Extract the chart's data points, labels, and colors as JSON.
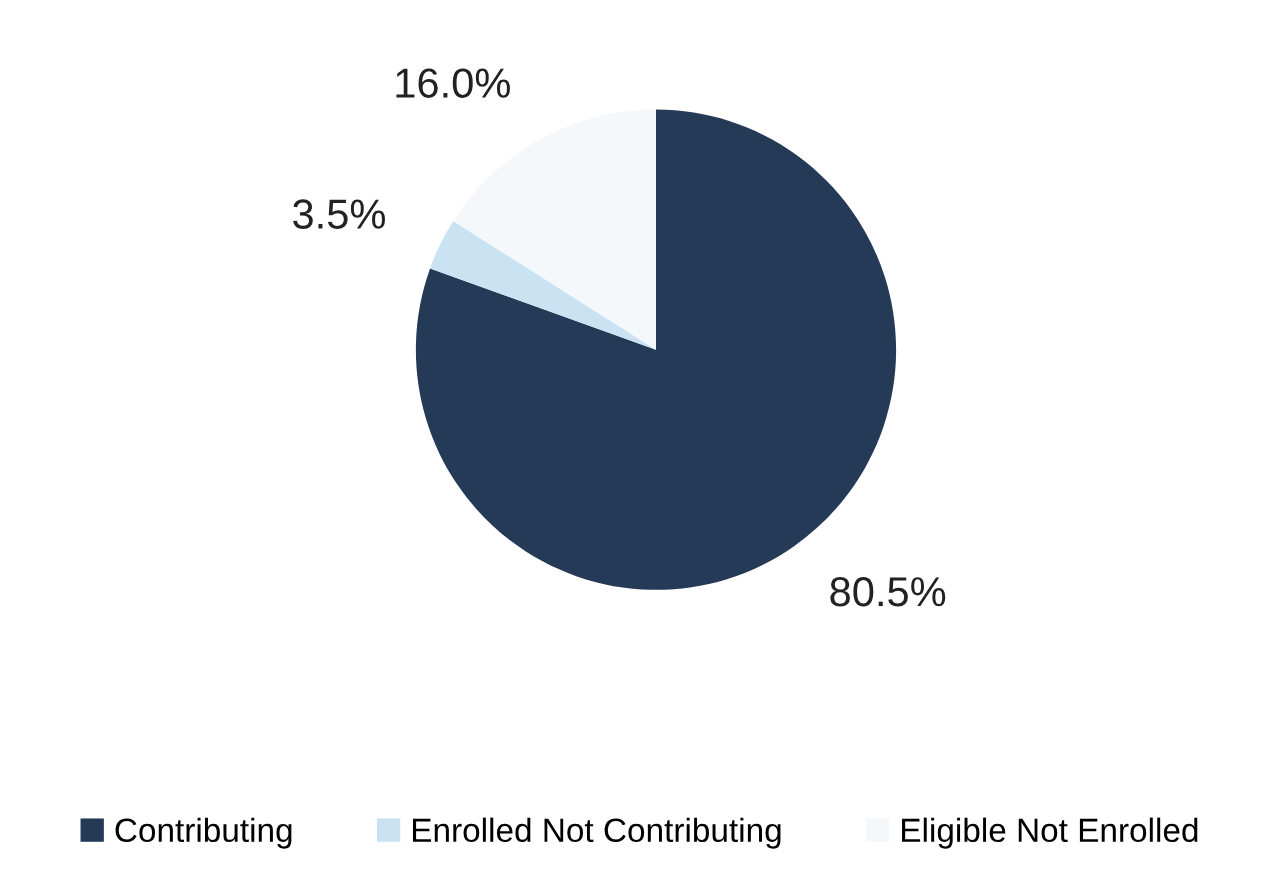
{
  "chart_data": {
    "type": "pie",
    "categories": [
      "Contributing",
      "Enrolled Not Contributing",
      "Eligible Not Enrolled"
    ],
    "values": [
      80.5,
      3.5,
      16.0
    ],
    "colors": [
      "#253a57",
      "#c9e3f3",
      "#f5f8fb"
    ],
    "value_labels": [
      "80.5%",
      "3.5%",
      "16.0%"
    ],
    "legend": "bottom"
  }
}
